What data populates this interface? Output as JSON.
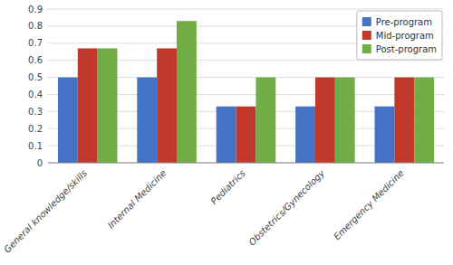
{
  "chart_data": {
    "type": "bar",
    "categories": [
      "General knowledge/skills",
      "Internal Medicine",
      "Pediatrics",
      "Obstetrics/Gynecology",
      "Emergency Medicine"
    ],
    "series": [
      {
        "name": "Pre-program",
        "color": "#4472C4",
        "values": [
          0.5,
          0.5,
          0.33,
          0.33,
          0.33
        ]
      },
      {
        "name": "Mid-program",
        "color": "#C0392B",
        "values": [
          0.67,
          0.67,
          0.33,
          0.5,
          0.5
        ]
      },
      {
        "name": "Post-program",
        "color": "#70AD47",
        "values": [
          0.67,
          0.83,
          0.5,
          0.5,
          0.5
        ]
      }
    ],
    "ylim": [
      0,
      0.9
    ],
    "yticks": [
      0,
      0.1,
      0.2,
      0.3,
      0.4,
      0.5,
      0.6,
      0.7,
      0.8,
      0.9
    ],
    "grid": true,
    "legend": "upper right"
  }
}
